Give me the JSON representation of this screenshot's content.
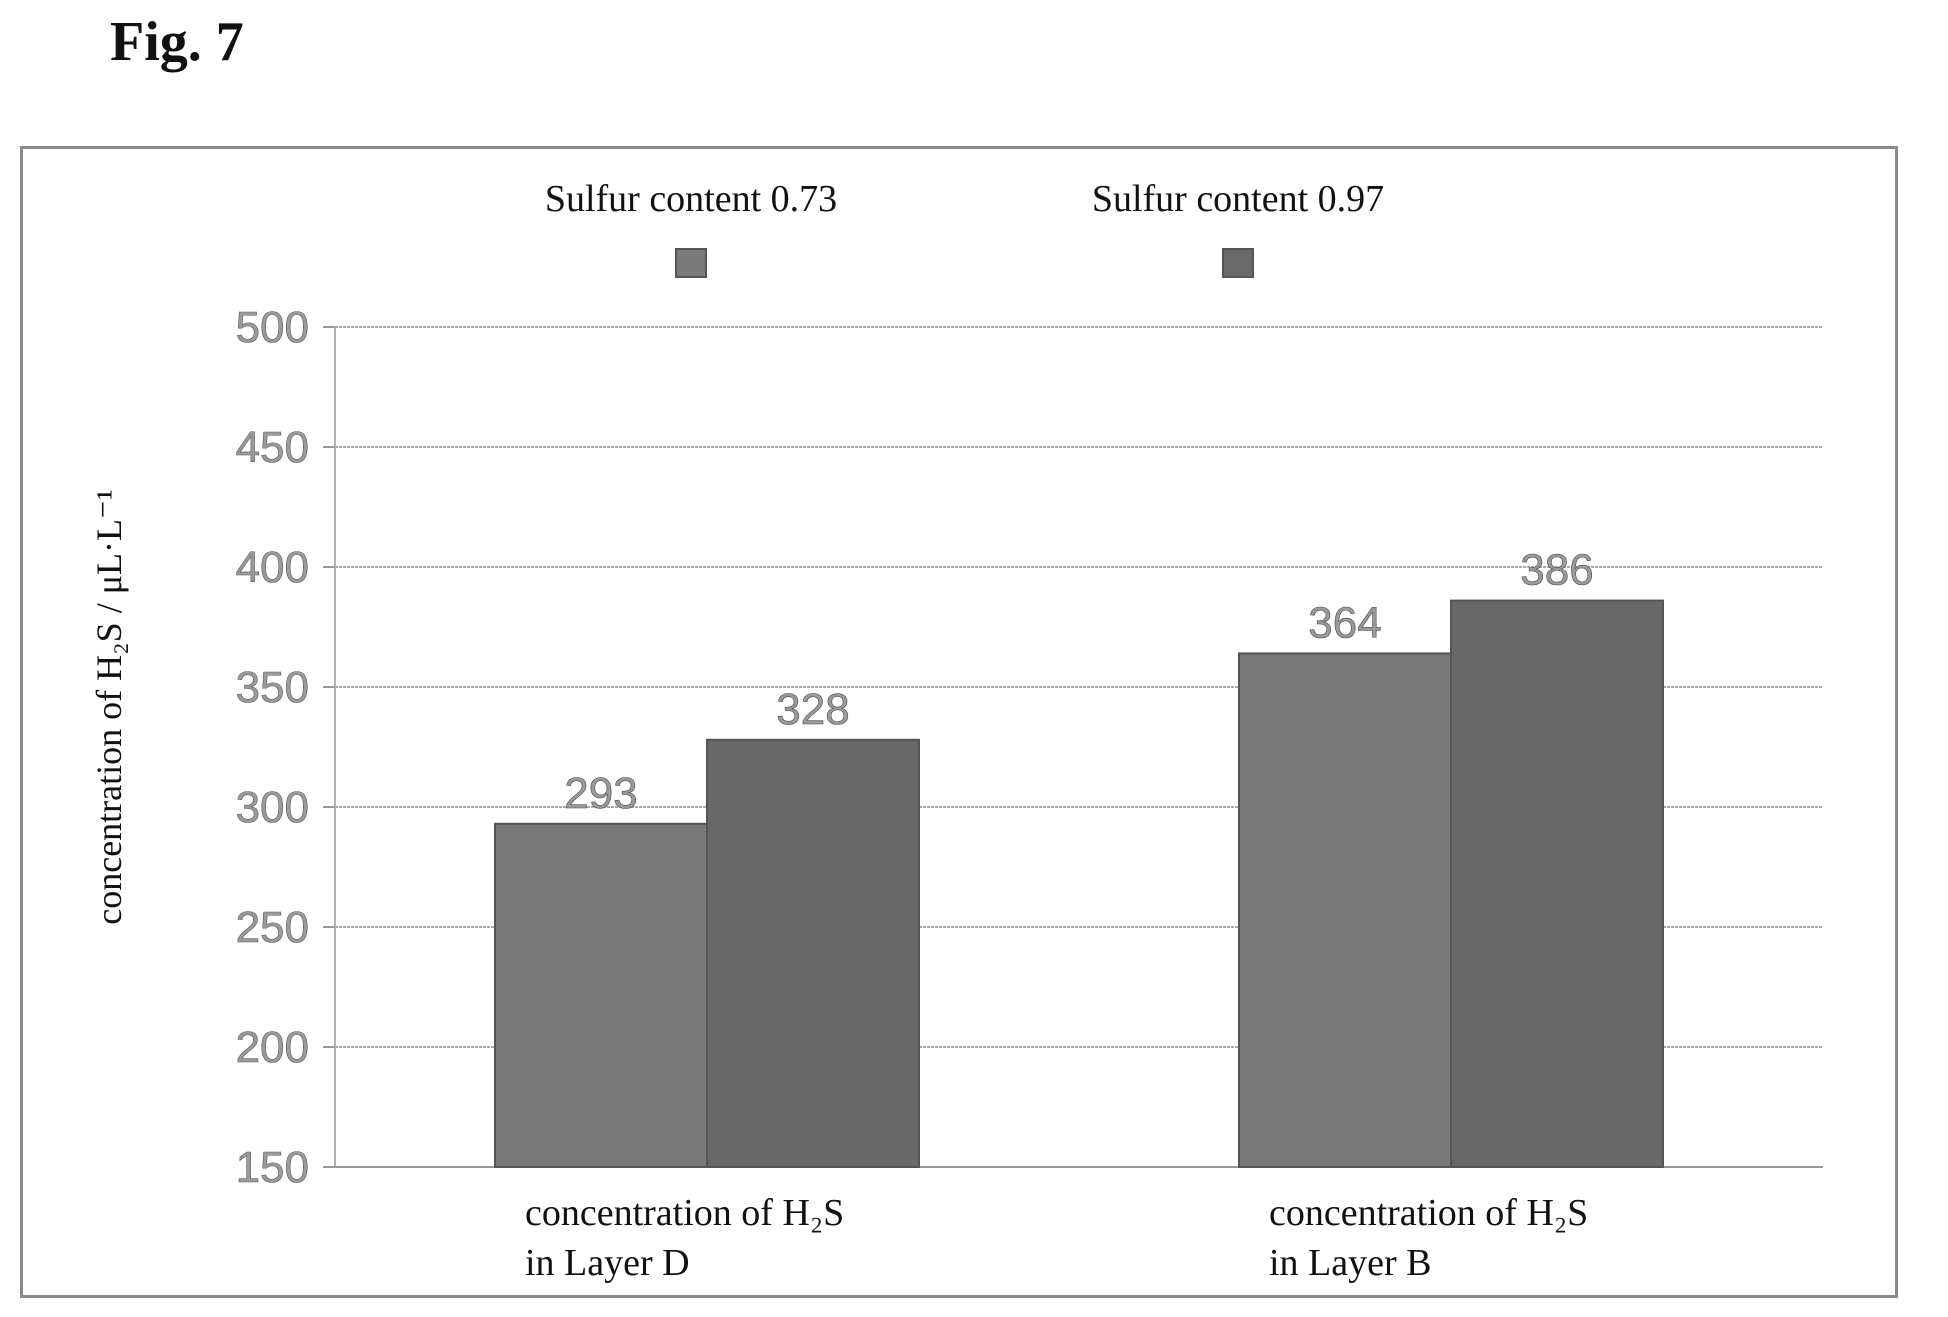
{
  "figure_label": "Fig. 7",
  "chart_data": {
    "type": "bar",
    "title": "",
    "categories": [
      [
        "concentration of H₂S",
        "in Layer D"
      ],
      [
        "concentration of H₂S",
        "in Layer B"
      ]
    ],
    "series": [
      {
        "name": "Sulfur content 0.73",
        "values": [
          293,
          364
        ],
        "color": "#7a7a7a"
      },
      {
        "name": "Sulfur content 0.97",
        "values": [
          328,
          386
        ],
        "color": "#6a6a6a"
      }
    ],
    "data_labels": [
      "293",
      "364",
      "328",
      "386"
    ],
    "ylabel": "concentration of H₂S / μL·L⁻¹",
    "xlabel": "",
    "ylim": [
      150,
      500
    ],
    "yticks": [
      150,
      200,
      250,
      300,
      350,
      400,
      450,
      500
    ],
    "grid": true,
    "legend_position": "top"
  }
}
